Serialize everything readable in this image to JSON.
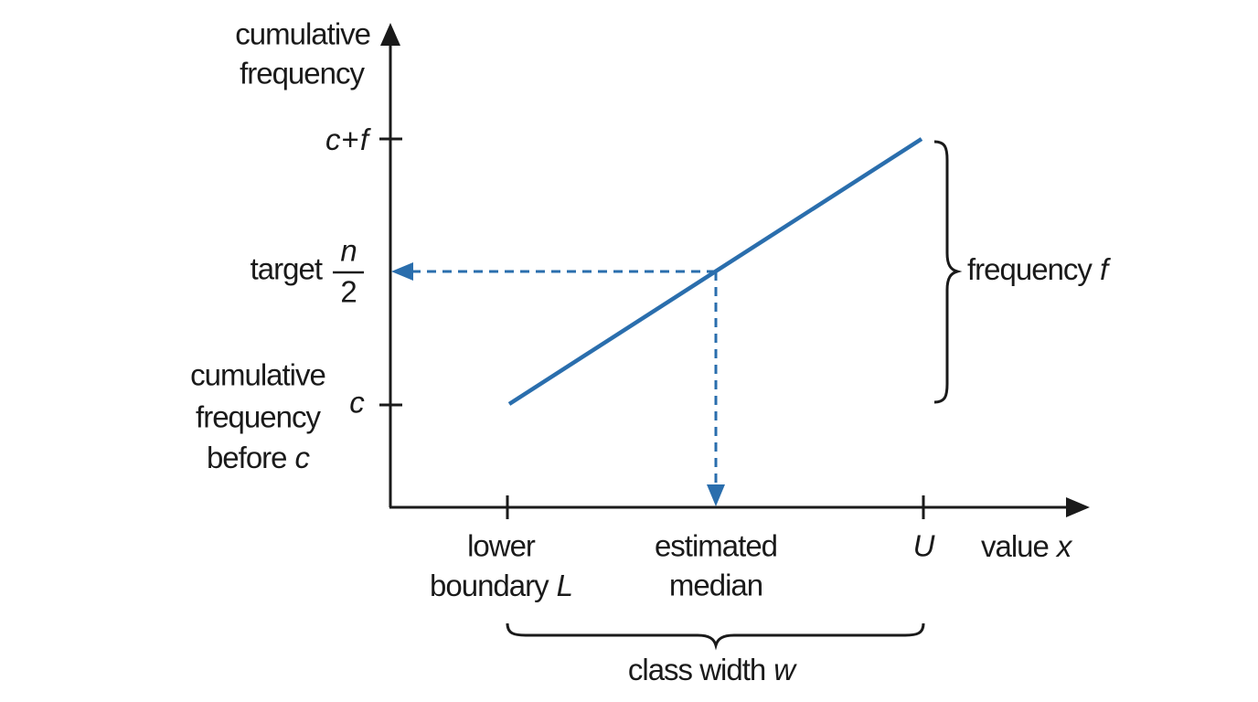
{
  "axes": {
    "y_label": [
      "cumulative",
      "frequency"
    ],
    "x_label": {
      "text": "value",
      "var": "x"
    }
  },
  "y_labels": {
    "top": {
      "a": "c",
      "op": "+",
      "b": "f"
    },
    "target": {
      "text": "target",
      "numerator": "n",
      "denominator": "2"
    },
    "bottom": {
      "lines": [
        "cumulative",
        "frequency",
        "before"
      ],
      "var": "c",
      "tick": "c"
    }
  },
  "x_labels": {
    "lower": {
      "lines": [
        "lower",
        "boundary"
      ],
      "var": "L"
    },
    "median": [
      "estimated",
      "median"
    ],
    "upper": "U"
  },
  "braces": {
    "frequency": {
      "text": "frequency",
      "var": "f"
    },
    "class_width": {
      "text": "class width",
      "var": "w"
    }
  }
}
